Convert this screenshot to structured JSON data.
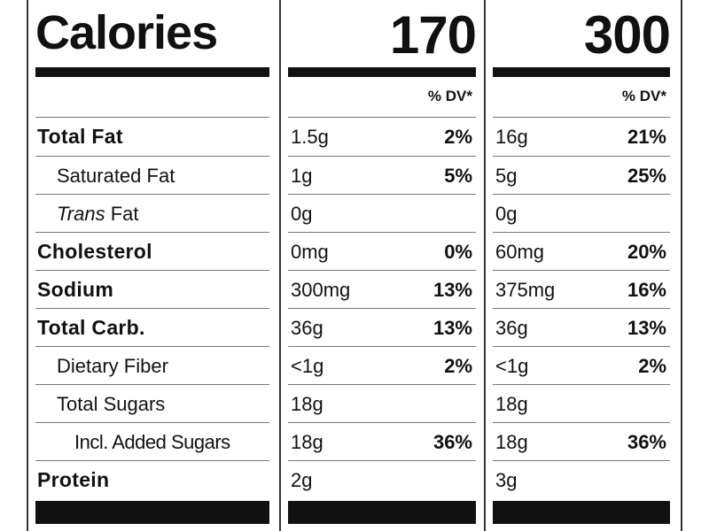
{
  "header": {
    "title": "Calories",
    "calories_a": "170",
    "calories_b": "300"
  },
  "dv_header": "% DV*",
  "rows": [
    {
      "label": "Total Fat",
      "a_amount": "1.5g",
      "a_pct": "2%",
      "b_amount": "16g",
      "b_pct": "21%"
    },
    {
      "label": "Saturated Fat",
      "a_amount": "1g",
      "a_pct": "5%",
      "b_amount": "5g",
      "b_pct": "25%"
    },
    {
      "label_italic": "Trans",
      "label": " Fat",
      "a_amount": "0g",
      "a_pct": "",
      "b_amount": "0g",
      "b_pct": ""
    },
    {
      "label": "Cholesterol",
      "a_amount": "0mg",
      "a_pct": "0%",
      "b_amount": "60mg",
      "b_pct": "20%"
    },
    {
      "label": "Sodium",
      "a_amount": "300mg",
      "a_pct": "13%",
      "b_amount": "375mg",
      "b_pct": "16%"
    },
    {
      "label": "Total Carb.",
      "a_amount": "36g",
      "a_pct": "13%",
      "b_amount": "36g",
      "b_pct": "13%"
    },
    {
      "label": "Dietary Fiber",
      "a_amount": "<1g",
      "a_pct": "2%",
      "b_amount": "<1g",
      "b_pct": "2%"
    },
    {
      "label": "Total Sugars",
      "a_amount": "18g",
      "a_pct": "",
      "b_amount": "18g",
      "b_pct": ""
    },
    {
      "label": "Incl. Added Sugars",
      "a_amount": "18g",
      "a_pct": "36%",
      "b_amount": "18g",
      "b_pct": "36%"
    },
    {
      "label": "Protein",
      "a_amount": "2g",
      "a_pct": "",
      "b_amount": "3g",
      "b_pct": ""
    }
  ]
}
